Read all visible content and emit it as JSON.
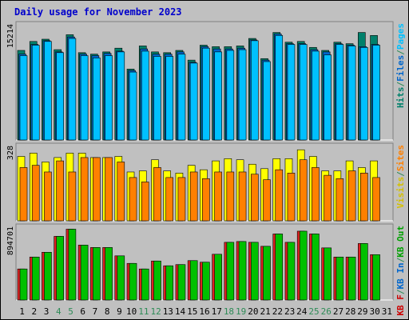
{
  "chart_data": [
    {
      "type": "bar",
      "title": "Daily usage for November 2023",
      "categories": [
        "1",
        "2",
        "3",
        "4",
        "5",
        "6",
        "7",
        "8",
        "9",
        "10",
        "11",
        "12",
        "13",
        "14",
        "15",
        "16",
        "17",
        "18",
        "19",
        "20",
        "21",
        "22",
        "23",
        "24",
        "25",
        "26",
        "27",
        "28",
        "29",
        "30",
        "31"
      ],
      "weekend_days": [
        "4",
        "5",
        "11",
        "12",
        "18",
        "19",
        "25",
        "26"
      ],
      "max_label": "15214",
      "ymax": 15214,
      "legend_right": [
        {
          "label": "Hits",
          "color": "#00806b"
        },
        {
          "label": "/",
          "color": "#2e8b57"
        },
        {
          "label": "Files",
          "color": "#0066cc"
        },
        {
          "label": "/",
          "color": "#2e8b57"
        },
        {
          "label": "Pages",
          "color": "#00c0ff"
        }
      ],
      "series": [
        {
          "name": "Hits",
          "color": "#00806b",
          "values": [
            12000,
            13200,
            13500,
            12100,
            14100,
            11700,
            11500,
            11800,
            12300,
            9500,
            12600,
            11800,
            11700,
            12000,
            10700,
            12700,
            12500,
            12500,
            12600,
            13600,
            10900,
            14400,
            13100,
            13200,
            12400,
            12000,
            13100,
            12900,
            14400,
            14000,
            0
          ]
        },
        {
          "name": "Files",
          "color": "#0066cc",
          "values": [
            11500,
            12800,
            13300,
            11800,
            13800,
            11500,
            11300,
            11600,
            11900,
            9300,
            12200,
            11500,
            11500,
            11800,
            10400,
            12500,
            12200,
            12200,
            12300,
            13400,
            10700,
            14200,
            12900,
            12900,
            12100,
            11800,
            12900,
            12700,
            12500,
            12800,
            0
          ]
        },
        {
          "name": "Pages",
          "color": "#00c0ff",
          "values": [
            11300,
            12700,
            13200,
            11700,
            13600,
            11300,
            11000,
            11300,
            11800,
            9100,
            11900,
            11200,
            11200,
            11500,
            10300,
            12300,
            11800,
            12000,
            12100,
            13300,
            10500,
            14000,
            12800,
            12800,
            11900,
            11400,
            12800,
            12600,
            12400,
            12700,
            0
          ]
        }
      ]
    },
    {
      "type": "bar",
      "max_label": "328",
      "ymax": 328,
      "legend_right": [
        {
          "label": "Visits",
          "color": "#d4c000"
        },
        {
          "label": "/",
          "color": "#2e8b57"
        },
        {
          "label": "Sites",
          "color": "#ff8000"
        }
      ],
      "series": [
        {
          "name": "Visits",
          "color": "#ffff00",
          "values": [
            290,
            305,
            265,
            285,
            305,
            305,
            285,
            285,
            290,
            220,
            225,
            275,
            225,
            215,
            250,
            230,
            270,
            280,
            275,
            255,
            235,
            280,
            280,
            320,
            290,
            225,
            225,
            270,
            240,
            270,
            0
          ]
        },
        {
          "name": "Sites",
          "color": "#ff8000",
          "values": [
            240,
            250,
            220,
            270,
            220,
            285,
            285,
            285,
            265,
            195,
            175,
            240,
            195,
            195,
            220,
            190,
            220,
            220,
            220,
            210,
            185,
            230,
            215,
            275,
            240,
            205,
            190,
            225,
            215,
            195,
            0
          ]
        }
      ]
    },
    {
      "type": "bar",
      "max_label": "894701",
      "ymax": 894701,
      "legend_right": [
        {
          "label": "KB F",
          "color": "#cc0000"
        },
        {
          "label": "/",
          "color": "#2e8b57"
        },
        {
          "label": "KB In",
          "color": "#0066cc"
        },
        {
          "label": "/",
          "color": "#2e8b57"
        },
        {
          "label": "KB Out",
          "color": "#00a000"
        }
      ],
      "series": [
        {
          "name": "KB F",
          "color": "#dd2222",
          "values": [
            390,
            540,
            600,
            800,
            890,
            690,
            660,
            660,
            555,
            460,
            390,
            490,
            430,
            445,
            495,
            475,
            575,
            725,
            735,
            725,
            675,
            830,
            725,
            865,
            830,
            655,
            540,
            540,
            710,
            570,
            0
          ]
        },
        {
          "name": "KB Out",
          "color": "#00c000",
          "values": [
            390,
            540,
            600,
            800,
            890,
            690,
            660,
            660,
            555,
            460,
            390,
            490,
            430,
            445,
            495,
            475,
            575,
            725,
            735,
            725,
            675,
            830,
            725,
            865,
            830,
            655,
            540,
            540,
            710,
            570,
            0
          ]
        }
      ]
    }
  ]
}
